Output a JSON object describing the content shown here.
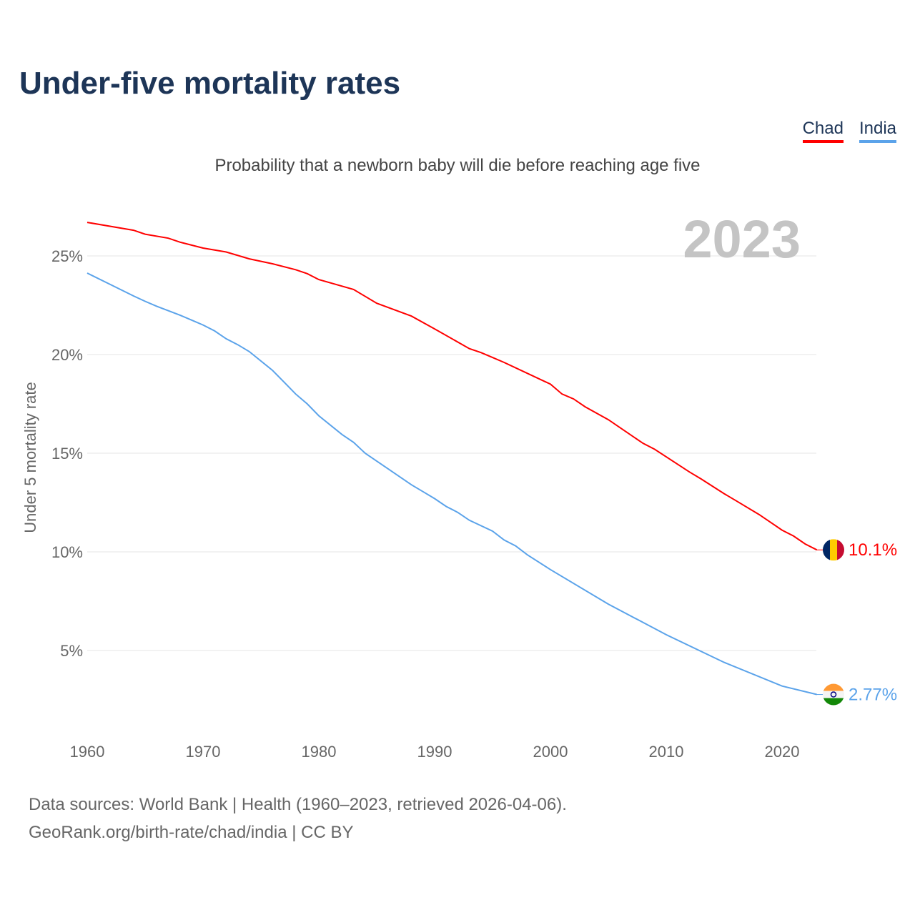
{
  "title": "Under-five mortality rates",
  "subtitle": "Probability that a newborn baby will die before reaching age five",
  "source_line1": "Data sources: World Bank | Health (1960–2023, retrieved 2026-04-06).",
  "source_line2": "GeoRank.org/birth-rate/chad/india | CC BY",
  "chart_data": {
    "type": "line",
    "title": "Under-five mortality rates",
    "ylabel": "Under 5 mortality rate",
    "xlabel": "",
    "year_label": "2023",
    "xlim": [
      1960,
      2023
    ],
    "ylim": [
      0,
      28
    ],
    "x_ticks": [
      "1960",
      "1970",
      "1980",
      "1990",
      "2000",
      "2010",
      "2020"
    ],
    "y_ticks": [
      "5%",
      "10%",
      "15%",
      "20%",
      "25%"
    ],
    "legend": "top-right",
    "series": [
      {
        "name": "Chad",
        "color": "#ff0000",
        "end_label": "10.1%",
        "flag": "chad-flag",
        "x": [
          1960,
          1964,
          1965,
          1967,
          1968,
          1970,
          1972,
          1974,
          1976,
          1978,
          1979,
          1980,
          1983,
          1985,
          1988,
          1990,
          1993,
          1994,
          1995,
          1996,
          2000,
          2001,
          2002,
          2003,
          2005,
          2008,
          2009,
          2012,
          2013,
          2015,
          2016,
          2018,
          2019,
          2020,
          2021,
          2022,
          2023
        ],
        "values": [
          26.7,
          26.3,
          26.1,
          25.9,
          25.7,
          25.4,
          25.2,
          24.85,
          24.6,
          24.3,
          24.1,
          23.8,
          23.3,
          22.6,
          21.95,
          21.3,
          20.3,
          20.1,
          19.85,
          19.6,
          18.5,
          18.0,
          17.75,
          17.35,
          16.7,
          15.5,
          15.2,
          14.05,
          13.7,
          12.95,
          12.6,
          11.9,
          11.5,
          11.1,
          10.8,
          10.4,
          10.1
        ]
      },
      {
        "name": "India",
        "color": "#5ba3ea",
        "end_label": "2.77%",
        "flag": "india-flag",
        "x": [
          1960,
          1962,
          1964,
          1965,
          1966,
          1968,
          1969,
          1970,
          1971,
          1972,
          1973,
          1974,
          1976,
          1977,
          1978,
          1979,
          1980,
          1982,
          1983,
          1984,
          1986,
          1988,
          1989,
          1990,
          1991,
          1992,
          1993,
          1995,
          1996,
          1997,
          1998,
          2000,
          2005,
          2010,
          2015,
          2020,
          2023
        ],
        "values": [
          24.13,
          23.55,
          22.97,
          22.7,
          22.45,
          22.0,
          21.75,
          21.5,
          21.2,
          20.8,
          20.5,
          20.15,
          19.2,
          18.6,
          18.0,
          17.5,
          16.9,
          15.95,
          15.55,
          15.0,
          14.2,
          13.4,
          13.05,
          12.7,
          12.3,
          12.0,
          11.6,
          11.05,
          10.6,
          10.3,
          9.85,
          9.1,
          7.35,
          5.8,
          4.4,
          3.2,
          2.77
        ]
      }
    ]
  }
}
